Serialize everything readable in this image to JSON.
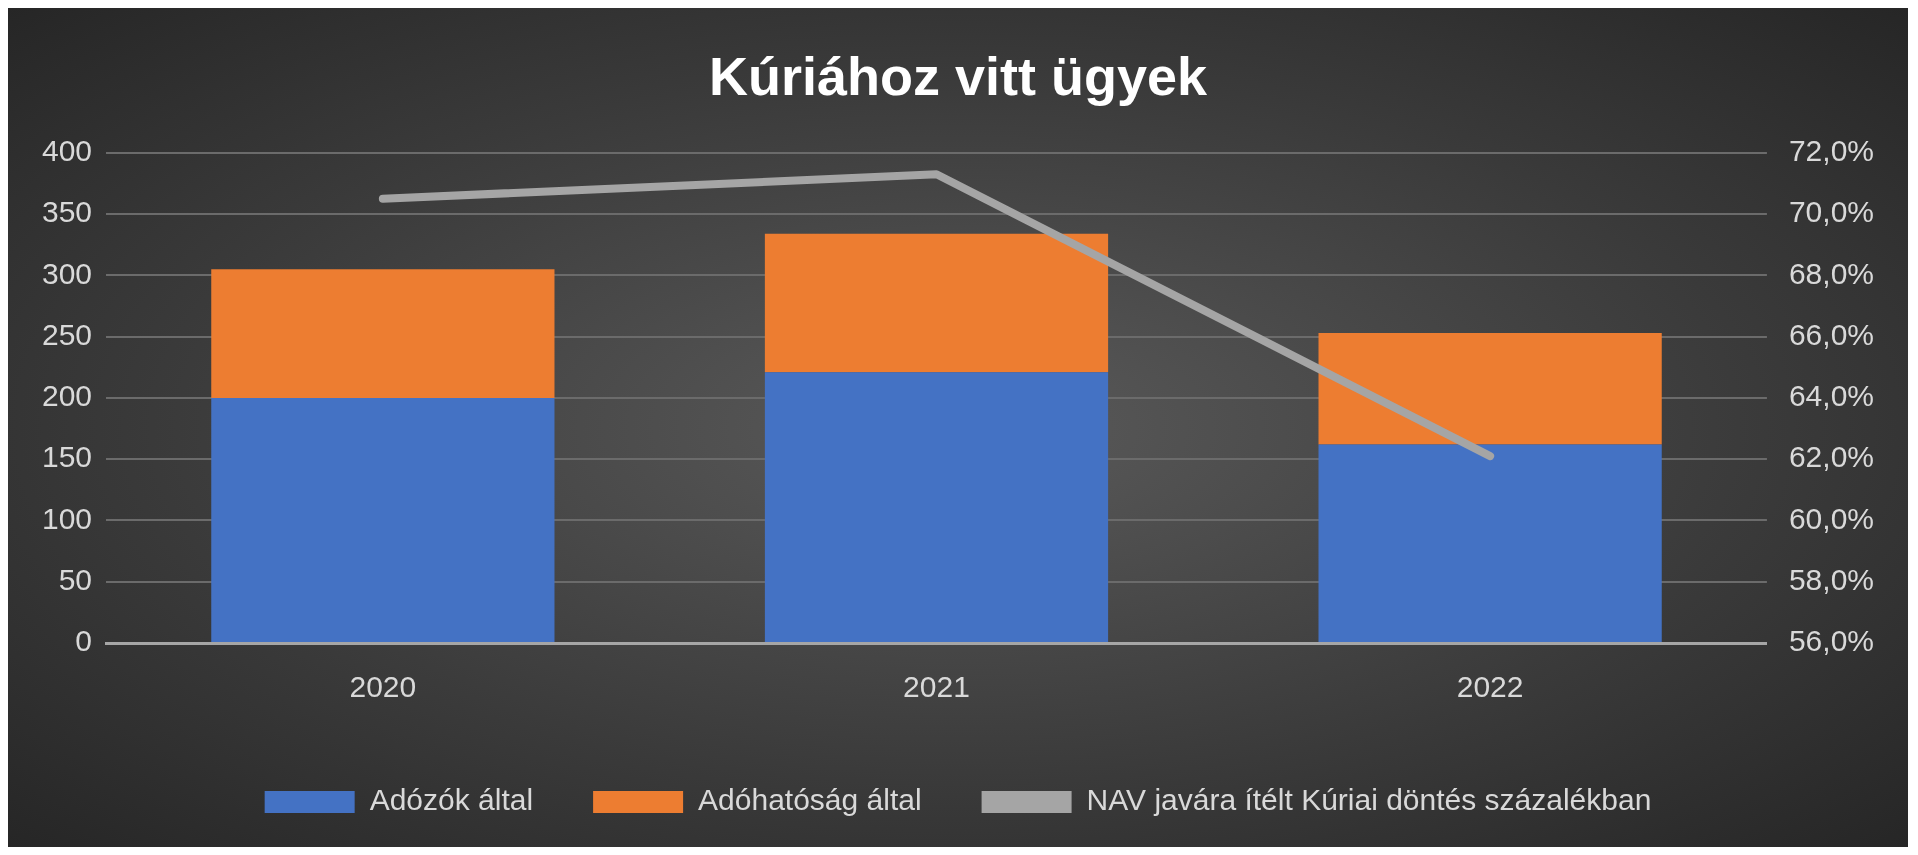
{
  "chart_data": {
    "type": "bar",
    "title": "Kúriához vitt ügyek",
    "categories": [
      "2020",
      "2021",
      "2022"
    ],
    "stacked": true,
    "series": [
      {
        "name": "Adózók által",
        "color": "#4472c4",
        "values": [
          200,
          221,
          162
        ]
      },
      {
        "name": "Adóhatóság által",
        "color": "#ed7d31",
        "values": [
          105,
          113,
          91
        ]
      },
      {
        "name": "NAV javára ítélt Kúriai döntés százalékban",
        "type": "line",
        "axis": "y2",
        "color": "#a5a5a5",
        "values": [
          70.5,
          71.3,
          62.1
        ]
      }
    ],
    "ylim": [
      0,
      400
    ],
    "yticks": [
      0,
      50,
      100,
      150,
      200,
      250,
      300,
      350,
      400
    ],
    "y2lim": [
      56,
      72
    ],
    "y2ticks": [
      {
        "value": 56,
        "label": "56,0%"
      },
      {
        "value": 58,
        "label": "58,0%"
      },
      {
        "value": 60,
        "label": "60,0%"
      },
      {
        "value": 62,
        "label": "62,0%"
      },
      {
        "value": 64,
        "label": "64,0%"
      },
      {
        "value": 66,
        "label": "66,0%"
      },
      {
        "value": 68,
        "label": "68,0%"
      },
      {
        "value": 70,
        "label": "70,0%"
      },
      {
        "value": 72,
        "label": "72,0%"
      }
    ],
    "grid": "y",
    "legend": "bottom",
    "marker": "none",
    "line_style": "solid"
  }
}
